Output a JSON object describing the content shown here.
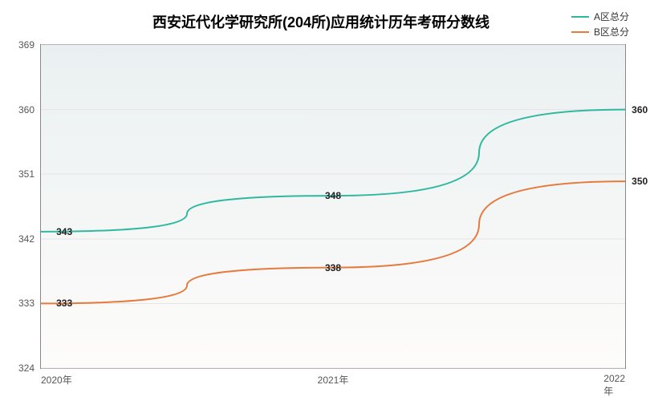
{
  "chart": {
    "type": "line",
    "title": "西安近代化学研究所(204所)应用统计历年考研分数线",
    "title_fontsize": 18,
    "title_color": "#000000",
    "background_color": "#ffffff",
    "plot_gradient_top": "#eaf0f1",
    "plot_gradient_bottom": "#fdfcfa",
    "border_color": "#888888",
    "grid_color": "#e5e5e5",
    "axis_label_color": "#555555",
    "axis_fontsize": 12,
    "xlim": [
      2020,
      2022
    ],
    "ylim": [
      324,
      369
    ],
    "yticks": [
      324,
      333,
      342,
      351,
      360,
      369
    ],
    "xticks": [
      2020,
      2021,
      2022
    ],
    "xtick_labels": [
      "2020年",
      "2021年",
      "2022年"
    ],
    "line_width": 2,
    "point_label_fontsize": 12,
    "point_label_color": "#222222",
    "series": [
      {
        "name": "A区总分",
        "color": "#2fb8a0",
        "x": [
          2020,
          2021,
          2022
        ],
        "y": [
          343,
          348,
          360
        ],
        "labels": [
          "343",
          "348",
          "360"
        ],
        "label_pos": [
          {
            "dx": 0.08,
            "dy": 0
          },
          {
            "dx": 0.0,
            "dy": 0
          },
          {
            "dx": 0.05,
            "dy": 0
          }
        ]
      },
      {
        "name": "B区总分",
        "color": "#e67a3c",
        "x": [
          2020,
          2021,
          2022
        ],
        "y": [
          333,
          338,
          350
        ],
        "labels": [
          "333",
          "338",
          "350"
        ],
        "label_pos": [
          {
            "dx": 0.08,
            "dy": 0
          },
          {
            "dx": 0.0,
            "dy": 0
          },
          {
            "dx": 0.05,
            "dy": 0
          }
        ]
      }
    ],
    "legend": {
      "position": "top-right",
      "fontsize": 12,
      "items": [
        "A区总分",
        "B区总分"
      ]
    }
  }
}
